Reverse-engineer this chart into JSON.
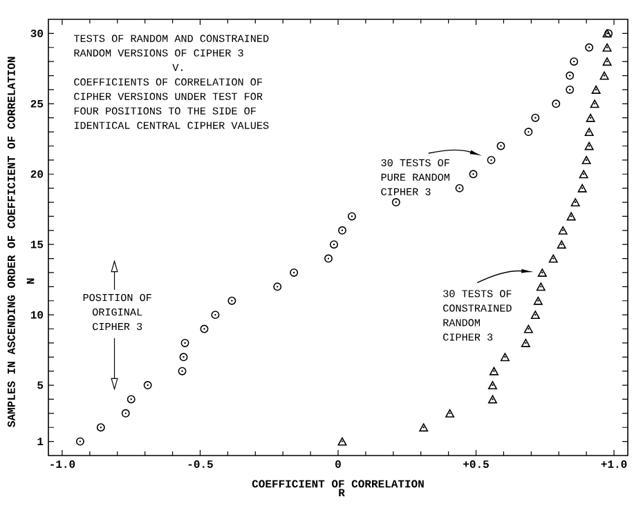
{
  "chart_data": {
    "type": "scatter",
    "title": "TESTS OF RANDOM AND CONSTRAINED RANDOM VERSIONS OF CIPHER 3",
    "subtitle": "COEFFICIENTS OF CORRELATION OF CIPHER VERSIONS UNDER TEST FOR FOUR POSITIONS TO THE SIDE OF IDENTICAL CENTRAL CIPHER VALUES",
    "xlabel": "COEFFICIENT OF CORRELATION",
    "ylabel": "SAMPLES IN ASCENDING ORDER OF COEFFICIENT OF CORRELATION",
    "annotations": [
      "V.",
      "30 TESTS OF PURE RANDOM CIPHER 3",
      "30 TESTS OF CONSTRAINED RANDOM CIPHER 3",
      "POSITION OF ORIGINAL CIPHER 3",
      "N",
      "R"
    ],
    "xlim": [
      -1.05,
      1.05
    ],
    "ylim": [
      0,
      31
    ],
    "xticks": [
      {
        "value": -1.0,
        "label": "-1.0"
      },
      {
        "value": -0.5,
        "label": "-0.5"
      },
      0,
      {
        "value": 0.5,
        "label": "+0.5"
      },
      {
        "value": 1.0,
        "label": "+1.0"
      }
    ],
    "yticks": [
      1,
      {
        "value": 2,
        "label": null
      },
      {
        "value": 3,
        "label": null
      },
      {
        "value": 4,
        "label": null
      },
      5,
      {
        "value": 6,
        "label": null
      },
      {
        "value": 7,
        "label": null
      },
      {
        "value": 8,
        "label": null
      },
      {
        "value": 9,
        "label": null
      },
      10,
      {
        "value": 11,
        "label": null
      },
      {
        "value": 12,
        "label": null
      },
      {
        "value": 13,
        "label": null
      },
      {
        "value": 14,
        "label": null
      },
      15,
      {
        "value": 16,
        "label": null
      },
      {
        "value": 17,
        "label": null
      },
      {
        "value": 18,
        "label": null
      },
      {
        "value": 19,
        "label": null
      },
      20,
      {
        "value": 21,
        "label": null
      },
      {
        "value": 22,
        "label": null
      },
      {
        "value": 23,
        "label": null
      },
      {
        "value": 24,
        "label": null
      },
      25,
      {
        "value": 26,
        "label": null
      },
      {
        "value": 27,
        "label": null
      },
      {
        "value": 28,
        "label": null
      },
      {
        "value": 29,
        "label": null
      },
      30
    ],
    "series": [
      {
        "color": "#000000",
        "marker": "circle",
        "x": [
          -0.935,
          -0.86,
          -0.77,
          -0.75,
          -0.69,
          -0.565,
          -0.56,
          -0.555,
          -0.485,
          -0.445,
          -0.385,
          -0.22,
          -0.16,
          -0.035,
          -0.015,
          0.015,
          0.05,
          0.21,
          0.44,
          0.49,
          0.555,
          0.59,
          0.69,
          0.715,
          0.79,
          0.84,
          0.84,
          0.855,
          0.91,
          0.98
        ],
        "values": [
          1,
          2,
          3,
          4,
          5,
          6,
          7,
          8,
          9,
          10,
          11,
          12,
          13,
          14,
          15,
          16,
          17,
          18,
          19,
          20,
          21,
          22,
          23,
          24,
          25,
          26,
          27,
          28,
          29,
          30
        ]
      },
      {
        "color": "#000000",
        "marker": "triangle",
        "x": [
          0.015,
          0.31,
          0.405,
          0.56,
          0.56,
          0.565,
          0.605,
          0.68,
          0.69,
          0.715,
          0.725,
          0.735,
          0.74,
          0.78,
          0.81,
          0.815,
          0.845,
          0.86,
          0.885,
          0.89,
          0.9,
          0.91,
          0.91,
          0.915,
          0.93,
          0.935,
          0.965,
          0.975,
          0.975,
          0.975
        ],
        "values": [
          1,
          2,
          3,
          4,
          5,
          6,
          7,
          8,
          9,
          10,
          11,
          12,
          13,
          14,
          15,
          16,
          17,
          18,
          19,
          20,
          21,
          22,
          23,
          24,
          25,
          26,
          27,
          28,
          29,
          30
        ]
      }
    ]
  }
}
